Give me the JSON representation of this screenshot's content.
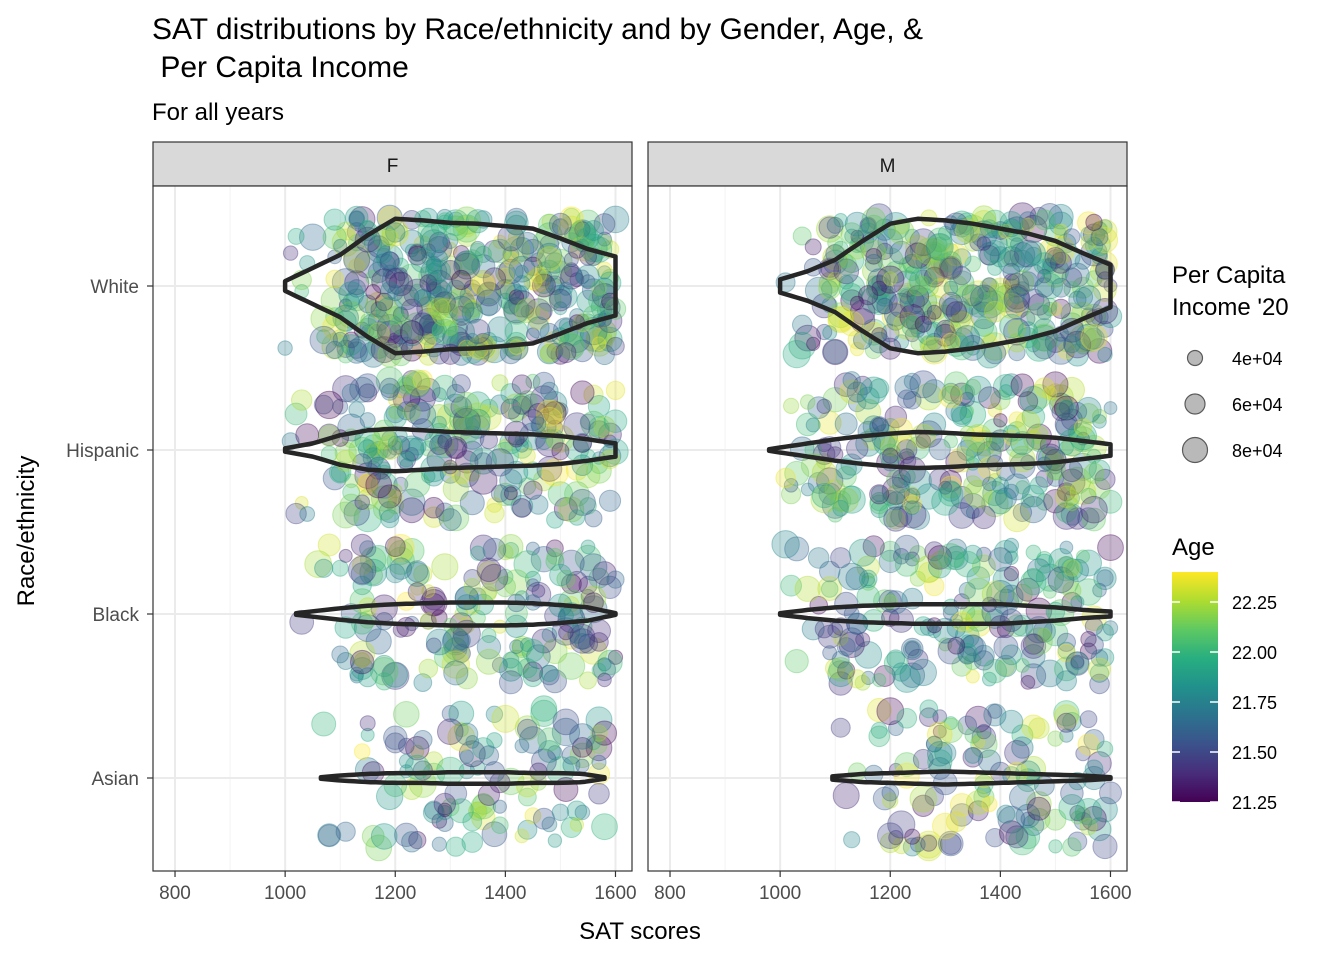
{
  "chart_data": {
    "type": "violin+scatter",
    "title_lines": [
      "SAT distributions by Race/ethnicity and by Gender, Age, &",
      " Per Capita Income"
    ],
    "subtitle": "For all years",
    "xlabel": "SAT scores",
    "ylabel": "Race/ethnicity",
    "xlim": [
      760,
      1630
    ],
    "x_ticks": [
      800,
      1000,
      1200,
      1400,
      1600
    ],
    "x_tick_labels": [
      "800",
      "1000",
      "1200",
      "1400",
      "1600"
    ],
    "categories": [
      "White",
      "Hispanic",
      "Black",
      "Asian"
    ],
    "facets": [
      "F",
      "M"
    ],
    "point_alpha": 0.3,
    "violin_color": "#262626",
    "strip_fill": "#d9d9d9",
    "grid_color": "#ebebeb",
    "size_legend": {
      "title_lines": [
        "Per Capita",
        "Income '20"
      ],
      "values": [
        40000,
        60000,
        80000
      ],
      "labels": [
        "4e+04",
        "6e+04",
        "8e+04"
      ],
      "color": "#7f7f7f"
    },
    "color_legend": {
      "title": "Age",
      "min": 21.25,
      "max": 22.4,
      "ticks": [
        21.25,
        21.5,
        21.75,
        22.0,
        22.25
      ],
      "tick_labels": [
        "21.25",
        "21.50",
        "21.75",
        "22.00",
        "22.25"
      ],
      "colormap": [
        "#440154",
        "#472d7b",
        "#3b528b",
        "#2c728e",
        "#21918c",
        "#28ae80",
        "#5ec962",
        "#addc30",
        "#fde725"
      ]
    },
    "groups": [
      {
        "facet": "F",
        "category": "White",
        "n": 420,
        "xmin": 1000,
        "xmax": 1600,
        "violin": [
          [
            1000,
            0.06
          ],
          [
            1050,
            0.22
          ],
          [
            1100,
            0.38
          ],
          [
            1150,
            0.62
          ],
          [
            1200,
            0.82
          ],
          [
            1250,
            0.8
          ],
          [
            1300,
            0.77
          ],
          [
            1350,
            0.76
          ],
          [
            1400,
            0.73
          ],
          [
            1450,
            0.7
          ],
          [
            1500,
            0.58
          ],
          [
            1550,
            0.45
          ],
          [
            1600,
            0.36
          ]
        ]
      },
      {
        "facet": "F",
        "category": "Hispanic",
        "n": 260,
        "xmin": 1000,
        "xmax": 1600,
        "violin": [
          [
            1000,
            0.02
          ],
          [
            1050,
            0.08
          ],
          [
            1100,
            0.18
          ],
          [
            1150,
            0.24
          ],
          [
            1200,
            0.26
          ],
          [
            1250,
            0.24
          ],
          [
            1300,
            0.22
          ],
          [
            1350,
            0.21
          ],
          [
            1400,
            0.2
          ],
          [
            1450,
            0.19
          ],
          [
            1500,
            0.17
          ],
          [
            1550,
            0.13
          ],
          [
            1600,
            0.08
          ]
        ]
      },
      {
        "facet": "F",
        "category": "Black",
        "n": 190,
        "xmin": 1020,
        "xmax": 1600,
        "violin": [
          [
            1020,
            0.01
          ],
          [
            1060,
            0.04
          ],
          [
            1100,
            0.07
          ],
          [
            1150,
            0.1
          ],
          [
            1200,
            0.12
          ],
          [
            1250,
            0.13
          ],
          [
            1300,
            0.14
          ],
          [
            1350,
            0.14
          ],
          [
            1400,
            0.14
          ],
          [
            1450,
            0.13
          ],
          [
            1500,
            0.11
          ],
          [
            1550,
            0.08
          ],
          [
            1600,
            0.01
          ]
        ]
      },
      {
        "facet": "F",
        "category": "Asian",
        "n": 120,
        "xmin": 1065,
        "xmax": 1580,
        "violin": [
          [
            1065,
            0.01
          ],
          [
            1100,
            0.03
          ],
          [
            1150,
            0.05
          ],
          [
            1200,
            0.06
          ],
          [
            1250,
            0.06
          ],
          [
            1300,
            0.07
          ],
          [
            1350,
            0.07
          ],
          [
            1400,
            0.07
          ],
          [
            1450,
            0.06
          ],
          [
            1500,
            0.06
          ],
          [
            1540,
            0.05
          ],
          [
            1580,
            0.01
          ]
        ]
      },
      {
        "facet": "M",
        "category": "White",
        "n": 380,
        "xmin": 1000,
        "xmax": 1600,
        "violin": [
          [
            1000,
            0.08
          ],
          [
            1050,
            0.18
          ],
          [
            1100,
            0.32
          ],
          [
            1150,
            0.55
          ],
          [
            1200,
            0.76
          ],
          [
            1250,
            0.82
          ],
          [
            1300,
            0.8
          ],
          [
            1350,
            0.76
          ],
          [
            1400,
            0.7
          ],
          [
            1450,
            0.64
          ],
          [
            1500,
            0.55
          ],
          [
            1550,
            0.4
          ],
          [
            1600,
            0.26
          ]
        ]
      },
      {
        "facet": "M",
        "category": "Hispanic",
        "n": 270,
        "xmin": 980,
        "xmax": 1600,
        "violin": [
          [
            980,
            0.01
          ],
          [
            1000,
            0.03
          ],
          [
            1050,
            0.08
          ],
          [
            1100,
            0.13
          ],
          [
            1150,
            0.17
          ],
          [
            1200,
            0.2
          ],
          [
            1250,
            0.22
          ],
          [
            1300,
            0.21
          ],
          [
            1350,
            0.19
          ],
          [
            1400,
            0.18
          ],
          [
            1450,
            0.17
          ],
          [
            1500,
            0.15
          ],
          [
            1550,
            0.11
          ],
          [
            1600,
            0.07
          ]
        ]
      },
      {
        "facet": "M",
        "category": "Black",
        "n": 210,
        "xmin": 1000,
        "xmax": 1600,
        "violin": [
          [
            1000,
            0.01
          ],
          [
            1050,
            0.05
          ],
          [
            1100,
            0.08
          ],
          [
            1150,
            0.1
          ],
          [
            1200,
            0.11
          ],
          [
            1250,
            0.12
          ],
          [
            1300,
            0.12
          ],
          [
            1350,
            0.12
          ],
          [
            1400,
            0.12
          ],
          [
            1450,
            0.1
          ],
          [
            1500,
            0.08
          ],
          [
            1550,
            0.05
          ],
          [
            1600,
            0.03
          ]
        ]
      },
      {
        "facet": "M",
        "category": "Asian",
        "n": 130,
        "xmin": 1095,
        "xmax": 1600,
        "violin": [
          [
            1095,
            0.02
          ],
          [
            1150,
            0.05
          ],
          [
            1200,
            0.06
          ],
          [
            1250,
            0.07
          ],
          [
            1300,
            0.08
          ],
          [
            1350,
            0.07
          ],
          [
            1400,
            0.06
          ],
          [
            1450,
            0.05
          ],
          [
            1500,
            0.04
          ],
          [
            1550,
            0.03
          ],
          [
            1600,
            0.01
          ]
        ]
      }
    ]
  }
}
